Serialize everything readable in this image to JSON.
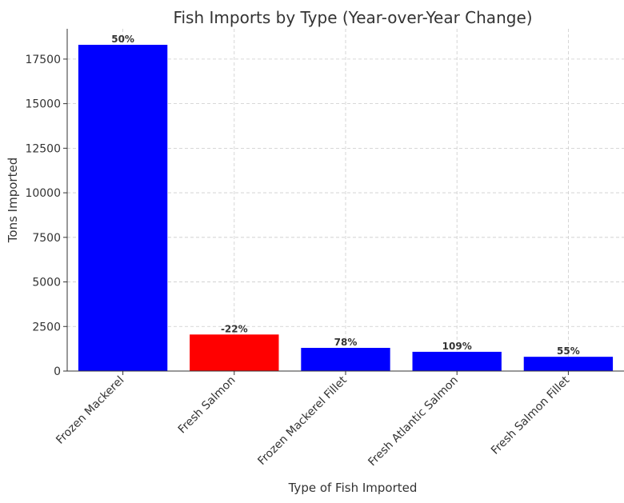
{
  "chart_data": {
    "type": "bar",
    "title": "Fish Imports by Type (Year-over-Year Change)",
    "xlabel": "Type of Fish Imported",
    "ylabel": "Tons Imported",
    "categories": [
      "Frozen Mackerel",
      "Fresh Salmon",
      "Frozen Mackerel Fillet",
      "Fresh Atlantic Salmon",
      "Fresh Salmon Fillet"
    ],
    "values": [
      18300,
      2050,
      1300,
      1080,
      800
    ],
    "data_labels": [
      "50%",
      "-22%",
      "78%",
      "109%",
      "55%"
    ],
    "bar_colors": [
      "#0000ff",
      "#ff0000",
      "#0000ff",
      "#0000ff",
      "#0000ff"
    ],
    "ylim": [
      0,
      19200
    ],
    "yticks": [
      0,
      2500,
      5000,
      7500,
      10000,
      12500,
      15000,
      17500
    ],
    "grid": true
  }
}
